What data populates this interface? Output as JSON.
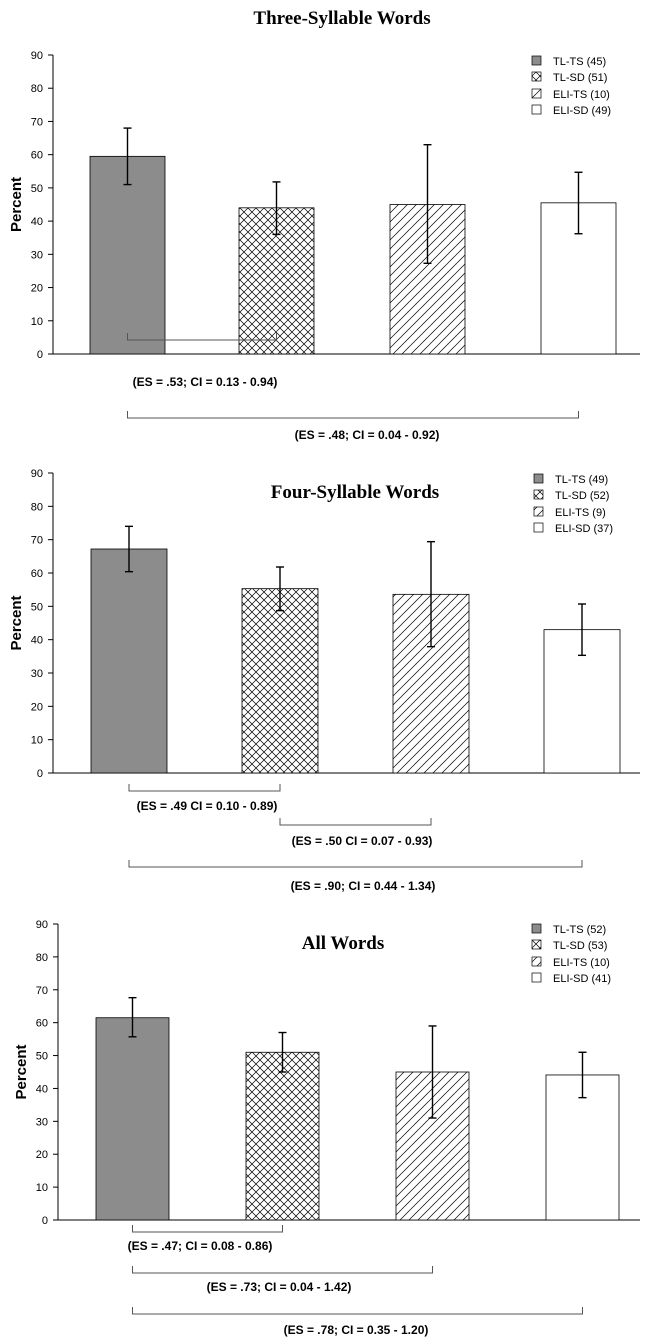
{
  "legend_symbols": {
    "TL-TS": "solid",
    "TL-SD": "crosshatch",
    "ELI-TS": "diagonal",
    "ELI-SD": "empty"
  },
  "colors": {
    "solid_fill": "#8c8c8c",
    "line": "#000000",
    "bracket": "#555555",
    "background": "#ffffff"
  },
  "chart_data": [
    {
      "type": "bar",
      "title": "Three-Syllable Words",
      "ylabel": "Percent",
      "xlabel": "",
      "ylim": [
        0,
        90
      ],
      "yticks": [
        0,
        10,
        20,
        30,
        40,
        50,
        60,
        70,
        80,
        90
      ],
      "grid": false,
      "legend_position": "top-right",
      "bars": [
        {
          "group": "TL-TS",
          "n": 45,
          "legend": "TL-TS (45)",
          "fill": "solid",
          "value": 59.5,
          "err_low": 51,
          "err_high": 68
        },
        {
          "group": "TL-SD",
          "n": 51,
          "legend": "TL-SD (51)",
          "fill": "crosshatch",
          "value": 44,
          "err_low": 36,
          "err_high": 51.8
        },
        {
          "group": "ELI-TS",
          "n": 10,
          "legend": "ELI-TS (10)",
          "fill": "diagonal",
          "value": 45,
          "err_low": 27.3,
          "err_high": 63
        },
        {
          "group": "ELI-SD",
          "n": 49,
          "legend": "ELI-SD (49)",
          "fill": "empty",
          "value": 45.5,
          "err_low": 36.2,
          "err_high": 54.7
        }
      ],
      "annotations": [
        {
          "from": "TL-TS",
          "to": "TL-SD",
          "text": "(ES = .53; CI = 0.13 - 0.94)"
        },
        {
          "from": "TL-TS",
          "to": "ELI-SD",
          "text": "(ES = .48; CI = 0.04 - 0.92)"
        }
      ]
    },
    {
      "type": "bar",
      "title": "Four-Syllable Words",
      "ylabel": "Percent",
      "xlabel": "",
      "ylim": [
        0,
        90
      ],
      "yticks": [
        0,
        10,
        20,
        30,
        40,
        50,
        60,
        70,
        80,
        90
      ],
      "grid": false,
      "legend_position": "top-right",
      "bars": [
        {
          "group": "TL-TS",
          "n": 49,
          "legend": "TL-TS (49)",
          "fill": "solid",
          "value": 67.2,
          "err_low": 60.4,
          "err_high": 74
        },
        {
          "group": "TL-SD",
          "n": 52,
          "legend": "TL-SD (52)",
          "fill": "crosshatch",
          "value": 55.3,
          "err_low": 48.7,
          "err_high": 61.8
        },
        {
          "group": "ELI-TS",
          "n": 9,
          "legend": "ELI-TS (9)",
          "fill": "diagonal",
          "value": 53.6,
          "err_low": 37.9,
          "err_high": 69.4
        },
        {
          "group": "ELI-SD",
          "n": 37,
          "legend": "ELI-SD (37)",
          "fill": "empty",
          "value": 43.0,
          "err_low": 35.3,
          "err_high": 50.7
        }
      ],
      "annotations": [
        {
          "from": "TL-TS",
          "to": "TL-SD",
          "text": "(ES = .49 CI = 0.10 - 0.89)"
        },
        {
          "from": "TL-SD",
          "to": "ELI-TS",
          "text": "(ES = .50 CI = 0.07 - 0.93)"
        },
        {
          "from": "TL-TS",
          "to": "ELI-SD",
          "text": "(ES = .90; CI = 0.44  - 1.34)"
        }
      ]
    },
    {
      "type": "bar",
      "title": "All Words",
      "ylabel": "Percent",
      "xlabel": "",
      "ylim": [
        0,
        90
      ],
      "yticks": [
        0,
        10,
        20,
        30,
        40,
        50,
        60,
        70,
        80,
        90
      ],
      "grid": false,
      "legend_position": "top-right",
      "bars": [
        {
          "group": "TL-TS",
          "n": 52,
          "legend": "TL-TS (52)",
          "fill": "solid",
          "value": 61.5,
          "err_low": 55.7,
          "err_high": 67.6
        },
        {
          "group": "TL-SD",
          "n": 53,
          "legend": "TL-SD (53)",
          "fill": "crosshatch",
          "value": 51,
          "err_low": 45,
          "err_high": 57
        },
        {
          "group": "ELI-TS",
          "n": 10,
          "legend": "ELI-TS (10)",
          "fill": "diagonal",
          "value": 45,
          "err_low": 31,
          "err_high": 59
        },
        {
          "group": "ELI-SD",
          "n": 41,
          "legend": "ELI-SD (41)",
          "fill": "empty",
          "value": 44.1,
          "err_low": 37.2,
          "err_high": 51
        }
      ],
      "annotations": [
        {
          "from": "TL-TS",
          "to": "TL-SD",
          "text": "(ES = .47; CI = 0.08 - 0.86)"
        },
        {
          "from": "TL-TS",
          "to": "ELI-TS",
          "text": "(ES = .73; CI = 0.04 - 1.42)"
        },
        {
          "from": "TL-TS",
          "to": "ELI-SD",
          "text": "(ES = .78; CI = 0.35 - 1.20)"
        }
      ]
    }
  ]
}
